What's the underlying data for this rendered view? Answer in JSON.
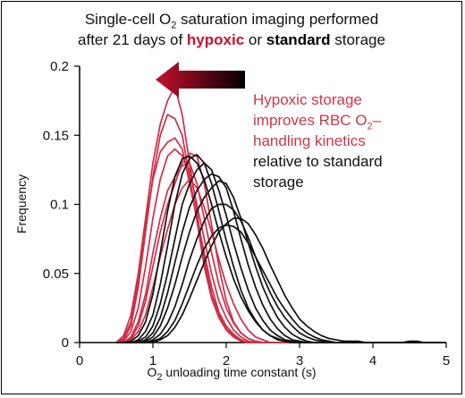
{
  "title": {
    "line1_prefix": "Single-cell O",
    "line1_sub": "2",
    "line1_suffix": " saturation imaging performed",
    "line2_prefix": "after 21 days of ",
    "line2_hypoxic": "hypoxic",
    "line2_mid": " or ",
    "line2_standard": "standard",
    "line2_suffix": " storage"
  },
  "annotation": {
    "red_line1": "Hypoxic storage",
    "red_line2_prefix": "improves RBC O",
    "red_line2_sub": "2",
    "red_line2_suffix": "–",
    "red_line3": "handling kinetics",
    "black_line1": "relative to standard",
    "black_line2": "storage"
  },
  "axes": {
    "xlabel_prefix": "O",
    "xlabel_sub": "2",
    "xlabel_suffix": " unloading time constant (s)",
    "ylabel": "Frequency"
  },
  "colors": {
    "hypoxic": "#cf2e47",
    "standard": "#111111",
    "arrow_start": "#c8102e",
    "arrow_end": "#000000"
  },
  "chart_data": {
    "type": "line",
    "xlim": [
      0,
      5
    ],
    "ylim": [
      0,
      0.2
    ],
    "x_ticks": [
      "0",
      "1",
      "2",
      "3",
      "4",
      "5"
    ],
    "y_ticks": [
      "0",
      "0.05",
      "0.1",
      "0.15",
      "0.2"
    ],
    "grid": false,
    "x": [
      0.5,
      0.6,
      0.7,
      0.8,
      0.9,
      1.0,
      1.1,
      1.2,
      1.3,
      1.4,
      1.5,
      1.6,
      1.7,
      1.8,
      1.9,
      2.0,
      2.1,
      2.2,
      2.3,
      2.4,
      2.5,
      2.6,
      2.7,
      2.8,
      2.9,
      3.0,
      3.1,
      3.2,
      3.3,
      3.4,
      3.5,
      3.6,
      3.7,
      3.8,
      3.9,
      4.0,
      4.1,
      4.2,
      4.3,
      4.4,
      4.5,
      4.6,
      4.7,
      4.8,
      4.9,
      5.0
    ],
    "series": [
      {
        "group": "hypoxic",
        "values": [
          0,
          0.005,
          0.02,
          0.05,
          0.09,
          0.13,
          0.158,
          0.175,
          0.185,
          0.165,
          0.13,
          0.095,
          0.06,
          0.035,
          0.02,
          0.01,
          0.005,
          0.002,
          0,
          0,
          0,
          0,
          0,
          0,
          0,
          0,
          0,
          0,
          0,
          0,
          0,
          0,
          0,
          0,
          0,
          0,
          0,
          0,
          0,
          0,
          0,
          0,
          0,
          0,
          0,
          0
        ]
      },
      {
        "group": "hypoxic",
        "values": [
          0,
          0.002,
          0.012,
          0.04,
          0.08,
          0.12,
          0.15,
          0.165,
          0.162,
          0.15,
          0.12,
          0.088,
          0.055,
          0.032,
          0.018,
          0.009,
          0.004,
          0.001,
          0,
          0,
          0,
          0,
          0,
          0,
          0,
          0,
          0,
          0,
          0,
          0,
          0,
          0,
          0,
          0,
          0,
          0,
          0,
          0,
          0,
          0,
          0,
          0,
          0,
          0,
          0,
          0
        ]
      },
      {
        "group": "hypoxic",
        "values": [
          0,
          0.003,
          0.015,
          0.045,
          0.085,
          0.118,
          0.138,
          0.145,
          0.148,
          0.14,
          0.115,
          0.09,
          0.065,
          0.04,
          0.022,
          0.012,
          0.006,
          0.002,
          0,
          0,
          0,
          0,
          0,
          0,
          0,
          0,
          0,
          0,
          0,
          0,
          0,
          0,
          0,
          0,
          0,
          0,
          0,
          0,
          0,
          0,
          0,
          0,
          0,
          0,
          0,
          0
        ]
      },
      {
        "group": "hypoxic",
        "values": [
          0,
          0.001,
          0.008,
          0.025,
          0.055,
          0.09,
          0.118,
          0.135,
          0.14,
          0.135,
          0.125,
          0.1,
          0.075,
          0.05,
          0.03,
          0.018,
          0.009,
          0.004,
          0.001,
          0,
          0,
          0,
          0,
          0,
          0,
          0,
          0,
          0,
          0,
          0,
          0,
          0,
          0,
          0,
          0,
          0,
          0,
          0,
          0,
          0,
          0,
          0,
          0,
          0,
          0,
          0
        ]
      },
      {
        "group": "hypoxic",
        "values": [
          0,
          0,
          0.004,
          0.015,
          0.035,
          0.065,
          0.09,
          0.11,
          0.12,
          0.128,
          0.13,
          0.115,
          0.09,
          0.065,
          0.042,
          0.025,
          0.014,
          0.007,
          0.003,
          0.001,
          0,
          0,
          0,
          0,
          0,
          0,
          0,
          0,
          0,
          0,
          0,
          0,
          0,
          0,
          0,
          0,
          0,
          0,
          0,
          0,
          0,
          0,
          0,
          0,
          0,
          0
        ]
      },
      {
        "group": "hypoxic",
        "values": [
          0,
          0,
          0.003,
          0.012,
          0.03,
          0.055,
          0.08,
          0.1,
          0.115,
          0.13,
          0.137,
          0.135,
          0.115,
          0.085,
          0.055,
          0.03,
          0.015,
          0.007,
          0.003,
          0.001,
          0,
          0,
          0,
          0,
          0,
          0,
          0,
          0,
          0,
          0,
          0,
          0,
          0,
          0,
          0,
          0,
          0,
          0,
          0,
          0,
          0,
          0,
          0,
          0,
          0,
          0
        ]
      },
      {
        "group": "hypoxic",
        "values": [
          0,
          0,
          0.002,
          0.008,
          0.02,
          0.04,
          0.062,
          0.082,
          0.1,
          0.112,
          0.118,
          0.112,
          0.098,
          0.08,
          0.06,
          0.042,
          0.028,
          0.017,
          0.009,
          0.004,
          0.002,
          0,
          0,
          0,
          0,
          0,
          0,
          0,
          0,
          0,
          0,
          0,
          0,
          0,
          0,
          0,
          0,
          0,
          0,
          0,
          0,
          0,
          0,
          0,
          0,
          0
        ]
      },
      {
        "group": "standard",
        "values": [
          0,
          0,
          0.001,
          0.005,
          0.015,
          0.035,
          0.065,
          0.095,
          0.12,
          0.133,
          0.135,
          0.13,
          0.118,
          0.1,
          0.08,
          0.062,
          0.046,
          0.033,
          0.023,
          0.015,
          0.009,
          0.005,
          0.003,
          0.001,
          0,
          0,
          0,
          0,
          0,
          0,
          0,
          0,
          0,
          0,
          0,
          0,
          0,
          0,
          0,
          0,
          0,
          0,
          0,
          0,
          0,
          0
        ]
      },
      {
        "group": "standard",
        "values": [
          0,
          0,
          0,
          0.002,
          0.008,
          0.02,
          0.042,
          0.07,
          0.1,
          0.122,
          0.133,
          0.136,
          0.13,
          0.115,
          0.095,
          0.074,
          0.055,
          0.038,
          0.025,
          0.016,
          0.009,
          0.005,
          0.002,
          0.001,
          0,
          0,
          0,
          0,
          0,
          0,
          0,
          0,
          0,
          0,
          0,
          0,
          0,
          0,
          0,
          0,
          0,
          0,
          0,
          0,
          0,
          0
        ]
      },
      {
        "group": "standard",
        "values": [
          0,
          0,
          0,
          0.001,
          0.004,
          0.012,
          0.028,
          0.05,
          0.075,
          0.1,
          0.115,
          0.125,
          0.13,
          0.125,
          0.11,
          0.092,
          0.072,
          0.054,
          0.038,
          0.025,
          0.016,
          0.009,
          0.005,
          0.002,
          0.001,
          0,
          0,
          0,
          0,
          0,
          0,
          0,
          0,
          0,
          0,
          0,
          0,
          0,
          0,
          0,
          0,
          0,
          0,
          0,
          0,
          0
        ]
      },
      {
        "group": "standard",
        "values": [
          0,
          0,
          0,
          0,
          0.002,
          0.007,
          0.018,
          0.036,
          0.058,
          0.08,
          0.098,
          0.11,
          0.118,
          0.122,
          0.12,
          0.112,
          0.095,
          0.075,
          0.056,
          0.04,
          0.027,
          0.017,
          0.01,
          0.005,
          0.002,
          0.001,
          0,
          0,
          0,
          0,
          0,
          0,
          0,
          0,
          0,
          0,
          0,
          0,
          0,
          0,
          0,
          0,
          0,
          0,
          0,
          0
        ]
      },
      {
        "group": "standard",
        "values": [
          0,
          0,
          0,
          0,
          0.001,
          0.004,
          0.012,
          0.025,
          0.042,
          0.062,
          0.08,
          0.095,
          0.105,
          0.112,
          0.117,
          0.115,
          0.105,
          0.09,
          0.072,
          0.055,
          0.04,
          0.028,
          0.018,
          0.011,
          0.006,
          0.003,
          0.001,
          0,
          0,
          0,
          0,
          0,
          0,
          0,
          0,
          0,
          0,
          0,
          0,
          0,
          0,
          0,
          0,
          0,
          0,
          0
        ]
      },
      {
        "group": "standard",
        "values": [
          0,
          0,
          0,
          0,
          0,
          0.002,
          0.006,
          0.014,
          0.026,
          0.042,
          0.06,
          0.075,
          0.088,
          0.097,
          0.1,
          0.1,
          0.096,
          0.088,
          0.076,
          0.062,
          0.048,
          0.036,
          0.026,
          0.018,
          0.012,
          0.007,
          0.004,
          0.002,
          0.001,
          0,
          0,
          0,
          0,
          0,
          0,
          0,
          0,
          0,
          0,
          0,
          0,
          0,
          0,
          0,
          0,
          0
        ]
      },
      {
        "group": "standard",
        "values": [
          0,
          0,
          0,
          0,
          0,
          0.001,
          0.003,
          0.008,
          0.016,
          0.028,
          0.042,
          0.056,
          0.068,
          0.077,
          0.083,
          0.085,
          0.084,
          0.08,
          0.072,
          0.062,
          0.052,
          0.042,
          0.032,
          0.024,
          0.017,
          0.011,
          0.007,
          0.004,
          0.002,
          0.001,
          0,
          0,
          0,
          0,
          0,
          0,
          0,
          0,
          0,
          0,
          0,
          0,
          0,
          0,
          0,
          0
        ]
      },
      {
        "group": "standard",
        "values": [
          0,
          0,
          0,
          0,
          0,
          0,
          0.002,
          0.005,
          0.011,
          0.02,
          0.032,
          0.045,
          0.058,
          0.07,
          0.08,
          0.086,
          0.09,
          0.09,
          0.086,
          0.078,
          0.068,
          0.056,
          0.045,
          0.034,
          0.025,
          0.017,
          0.012,
          0.008,
          0.005,
          0.003,
          0.002,
          0.001,
          0.001,
          0.001,
          0,
          0,
          0,
          0,
          0,
          0,
          0.001,
          0.001,
          0,
          0,
          0,
          0
        ]
      }
    ]
  }
}
